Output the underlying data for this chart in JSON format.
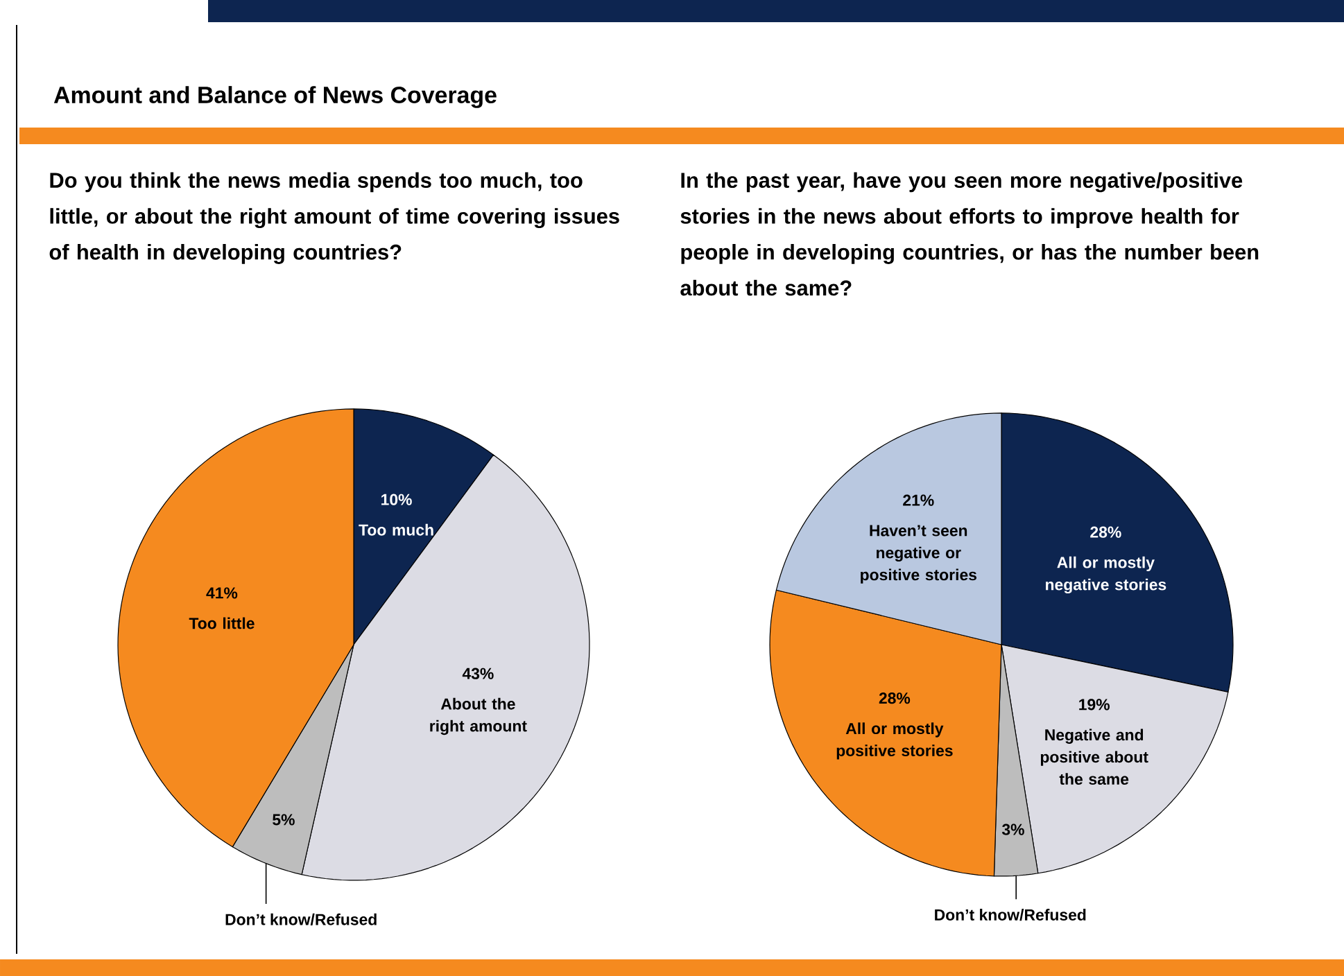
{
  "chart_data": [
    {
      "type": "pie",
      "annotations": [
        "Amount and Balance of News Coverage"
      ],
      "title": "Do you think the news media spends too much, too little, or about the right amount of time covering issues of health in developing countries?",
      "categories": [
        "Too much",
        "About the right amount",
        "Don’t know/Refused",
        "Too little"
      ],
      "values": [
        10,
        43,
        5,
        41
      ],
      "value_labels": [
        "10%",
        "43%",
        "5%",
        "41%"
      ],
      "colors": [
        "#0d2550",
        "#dcdce4",
        "#bdbdbd",
        "#f58a1f"
      ]
    },
    {
      "type": "pie",
      "title": "In the past year, have you seen more negative/positive stories in the news about efforts to improve health for people in developing countries, or has the number been about the same?",
      "categories": [
        "All or mostly negative stories",
        "Negative and positive about the same",
        "Don’t know/Refused",
        "All or mostly positive stories",
        "Haven’t seen negative or positive stories"
      ],
      "values": [
        28,
        19,
        3,
        28,
        21
      ],
      "value_labels": [
        "28%",
        "19%",
        "3%",
        "28%",
        "21%"
      ],
      "colors": [
        "#0d2550",
        "#dcdce4",
        "#bdbdbd",
        "#f58a1f",
        "#b9c8e0"
      ]
    }
  ]
}
